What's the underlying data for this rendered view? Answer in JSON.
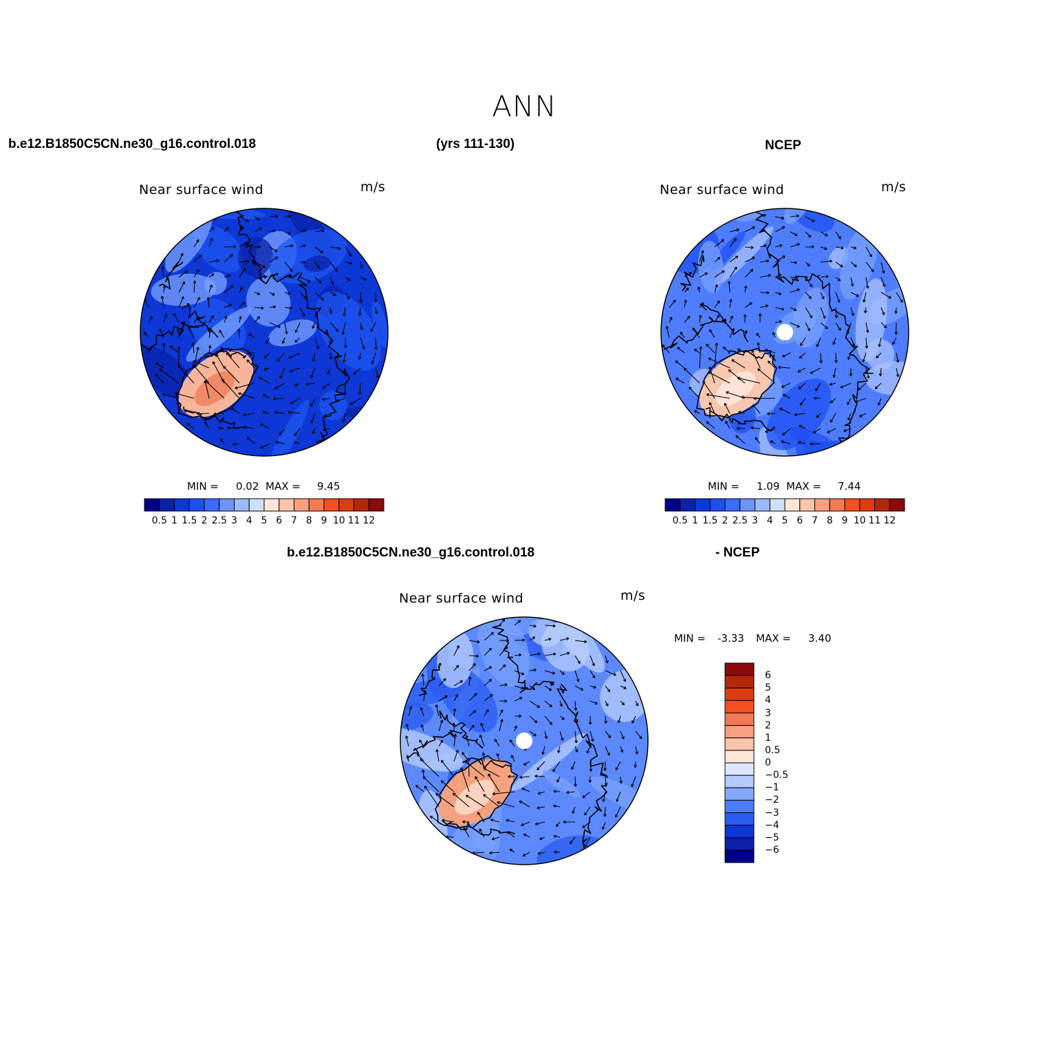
{
  "title": "ANN",
  "header": {
    "case_name": "b.e12.B1850C5CN.ne30_g16.control.018",
    "years": "(yrs 111-130)",
    "obs_name": "NCEP"
  },
  "panels": [
    {
      "title": "Near surface wind",
      "units": "m/s",
      "min_label": "MIN =",
      "min_value": "0.02",
      "max_label": "MAX =",
      "max_value": "9.45",
      "colorbar_ticks": [
        "0.5",
        "1",
        "1.5",
        "2",
        "2.5",
        "3",
        "4",
        "5",
        "6",
        "7",
        "8",
        "9",
        "10",
        "11",
        "12"
      ],
      "colors": {
        "background": "#0d38d6",
        "dark": "#0a22a8",
        "mid": "#1e55f0",
        "light": "#7aa2ff",
        "warm": "#f6b59a",
        "warm2": "#f08a66"
      }
    },
    {
      "title": "Near surface wind",
      "units": "m/s",
      "min_label": "MIN =",
      "min_value": "1.09",
      "max_label": "MAX =",
      "max_value": "7.44",
      "colorbar_ticks": [
        "0.5",
        "1",
        "1.5",
        "2",
        "2.5",
        "3",
        "4",
        "5",
        "6",
        "7",
        "8",
        "9",
        "10",
        "11",
        "12"
      ],
      "colors": {
        "background": "#4f7dff",
        "dark": "#1e50f0",
        "mid": "#7aa2ff",
        "light": "#a9c2ff",
        "warm": "#f8c7ae",
        "warm2": "#fde4d6"
      }
    }
  ],
  "diff_header": {
    "case_name": "b.e12.B1850C5CN.ne30_g16.control.018",
    "obs_name": "- NCEP"
  },
  "diff_panel": {
    "title": "Near surface wind",
    "units": "m/s",
    "min_label": "MIN =",
    "min_value": "-3.33",
    "max_label": "MAX =",
    "max_value": "3.40",
    "colorbar_ticks": [
      "6",
      "5",
      "4",
      "3",
      "2",
      "1",
      "0.5",
      "0",
      "−0.5",
      "−1",
      "−2",
      "−3",
      "−4",
      "−5",
      "−6"
    ],
    "colors": {
      "background": "#5d89ff",
      "dark": "#2a5cf0",
      "mid": "#7aa2ff",
      "light": "#b9cfff",
      "warm": "#f4a27f",
      "warm2": "#fad4c0"
    }
  },
  "palette_abs": [
    "#00008b",
    "#0a22a8",
    "#0d38d6",
    "#1e50f0",
    "#3c6cff",
    "#6c96ff",
    "#9dbaff",
    "#cfe0ff",
    "#ffe6d8",
    "#fcc4ac",
    "#f8a07f",
    "#f47a55",
    "#f25020",
    "#dc3c10",
    "#b4280a",
    "#8c0a0a"
  ],
  "palette_diff": [
    "#8c0a0a",
    "#b4280a",
    "#dc3c10",
    "#f25020",
    "#f47a55",
    "#f8a07f",
    "#fcc4ac",
    "#ffe6d8",
    "#dbe8ff",
    "#b3cbff",
    "#84a8ff",
    "#4f7dff",
    "#2a5cf0",
    "#0d38d6",
    "#0a22a8",
    "#00008b"
  ]
}
